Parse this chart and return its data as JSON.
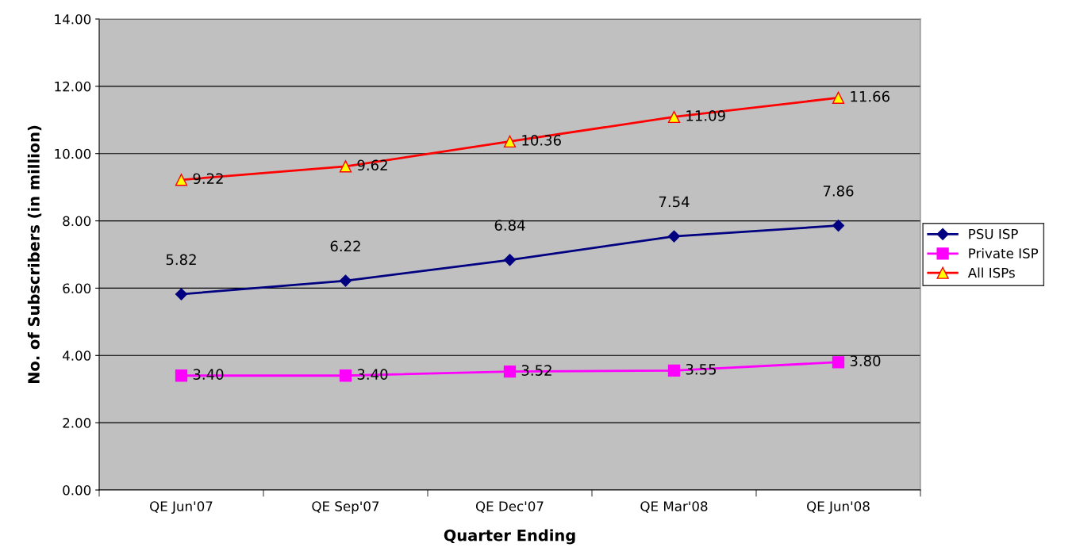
{
  "chart_data": {
    "type": "line",
    "xlabel": "Quarter Ending",
    "ylabel": "No. of Subscribers (in million)",
    "categories": [
      "QE Jun'07",
      "QE Sep'07",
      "QE Dec'07",
      "QE Mar'08",
      "QE Jun'08"
    ],
    "series": [
      {
        "name": "PSU ISP",
        "color": "#000080",
        "marker": "diamond",
        "values": [
          5.82,
          6.22,
          6.84,
          7.54,
          7.86
        ],
        "value_labels": [
          "5.82",
          "6.22",
          "6.84",
          "7.54",
          "7.86"
        ]
      },
      {
        "name": "Private ISP",
        "color": "#ff00ff",
        "marker": "square",
        "values": [
          3.4,
          3.4,
          3.52,
          3.55,
          3.8
        ],
        "value_labels": [
          "3.40",
          "3.40",
          "3.52",
          "3.55",
          "3.80"
        ]
      },
      {
        "name": "All ISPs",
        "color": "#ff0000",
        "marker": "triangle",
        "values": [
          9.22,
          9.62,
          10.36,
          11.09,
          11.66
        ],
        "value_labels": [
          "9.22",
          "9.62",
          "10.36",
          "11.09",
          "11.66"
        ]
      }
    ],
    "ylim": [
      0,
      14
    ],
    "yticks": [
      {
        "value": 0,
        "label": "0.00"
      },
      {
        "value": 2,
        "label": "2.00"
      },
      {
        "value": 4,
        "label": "4.00"
      },
      {
        "value": 6,
        "label": "6.00"
      },
      {
        "value": 8,
        "label": "8.00"
      },
      {
        "value": 10,
        "label": "10.00"
      },
      {
        "value": 12,
        "label": "12.00"
      },
      {
        "value": 14,
        "label": "14.00"
      }
    ],
    "grid": "y",
    "legend": "right",
    "line_style": "solid"
  }
}
